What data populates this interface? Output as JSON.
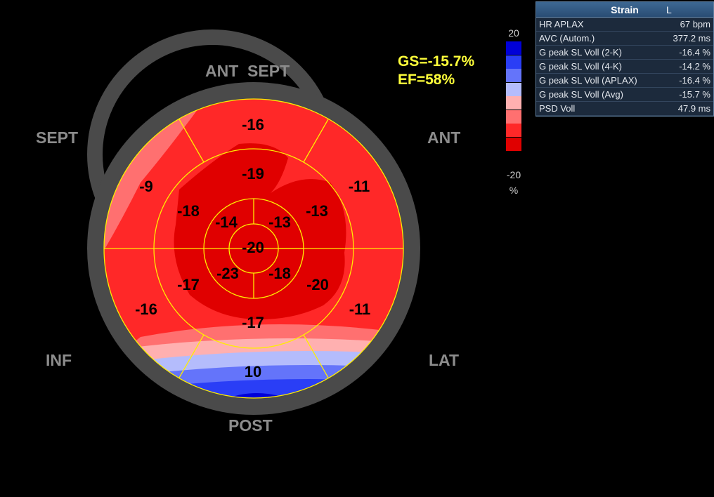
{
  "walls": {
    "ant_sept": "ANT  SEPT",
    "sept": "SEPT",
    "ant": "ANT",
    "inf": "INF",
    "lat": "LAT",
    "post": "POST"
  },
  "summary": {
    "gs": "GS=-15.7%",
    "ef": "EF=58%"
  },
  "segments": {
    "basal_ant_sept": "-16",
    "basal_sept": "-9",
    "basal_ant": "-11",
    "basal_inf": "-16",
    "basal_lat": "-11",
    "basal_post": "10",
    "mid_ant_sept": "-19",
    "mid_sept": "-18",
    "mid_ant": "-13",
    "mid_inf": "-17",
    "mid_lat": "-20",
    "mid_post": "-17",
    "apical_sept": "-14",
    "apical_ant": "-13",
    "apical_inf": "-23",
    "apical_lat": "-18",
    "apex": "-20"
  },
  "scale": {
    "max": "20",
    "min": "-20",
    "unit": "%",
    "colors": [
      "#0000d8",
      "#2a3ef6",
      "#6474fa",
      "#b4bcfc",
      "#ffb0b0",
      "#ff7070",
      "#ff2828",
      "#e00000"
    ]
  },
  "colors": {
    "ring": "#4a4a4a",
    "lines": "#ffee00",
    "wall_label": "#8c8c8c",
    "summary": "#ffff3a"
  },
  "panel": {
    "title": "Strain",
    "title_marker": "L",
    "rows": [
      {
        "name": "HR APLAX",
        "value": "67 bpm"
      },
      {
        "name": "AVC (Autom.)",
        "value": "377.2 ms"
      },
      {
        "name": "G peak SL Voll (2-K)",
        "value": "-16.4 %"
      },
      {
        "name": "G peak SL Voll (4-K)",
        "value": "-14.2 %"
      },
      {
        "name": "G peak SL Voll (APLAX)",
        "value": "-16.4 %"
      },
      {
        "name": "G peak SL Voll (Avg)",
        "value": "-15.7 %"
      },
      {
        "name": "PSD Voll",
        "value": "47.9 ms"
      }
    ]
  }
}
